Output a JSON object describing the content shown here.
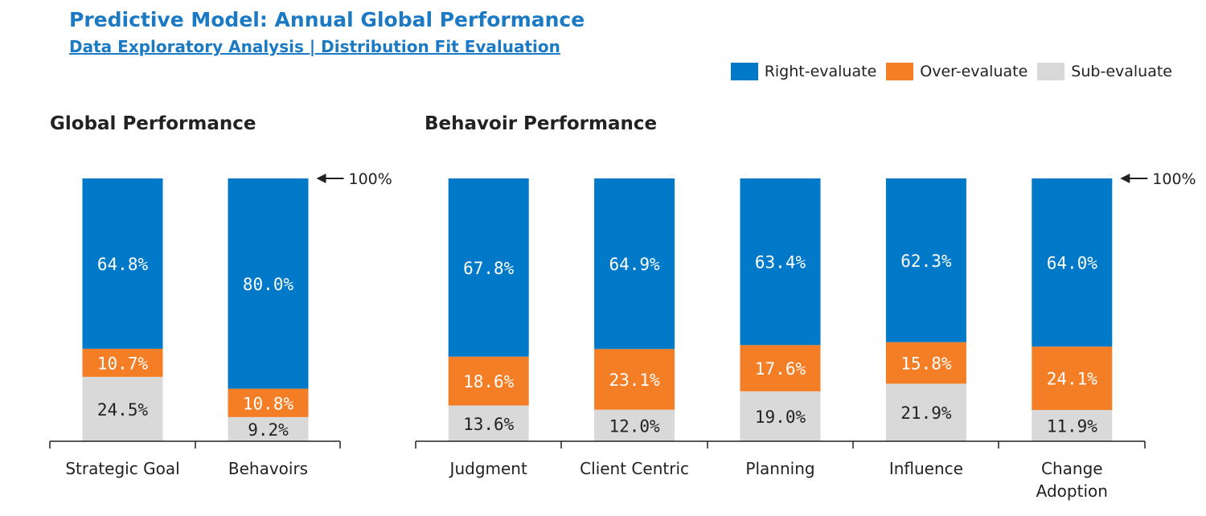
{
  "header": {
    "title": "Predictive Model: Annual Global Performance",
    "subtitle": "Data Exploratory Analysis | Distribution Fit Evaluation"
  },
  "legend": [
    {
      "name": "Right-evaluate",
      "color": "#0079c8"
    },
    {
      "name": "Over-evaluate",
      "color": "#f37e26"
    },
    {
      "name": "Sub-evaluate",
      "color": "#d9d9d9"
    }
  ],
  "chart_data": [
    {
      "type": "bar",
      "stacked": true,
      "title": "Global Performance",
      "categories": [
        "Strategic Goal",
        "Behavoirs"
      ],
      "series": [
        {
          "name": "Sub-evaluate",
          "values": [
            24.5,
            9.2
          ],
          "labels": [
            "24.5%",
            "9.2%"
          ]
        },
        {
          "name": "Over-evaluate",
          "values": [
            10.7,
            10.8
          ],
          "labels": [
            "10.7%",
            "10.8%"
          ]
        },
        {
          "name": "Right-evaluate",
          "values": [
            64.8,
            80.0
          ],
          "labels": [
            "64.8%",
            "80.0%"
          ]
        }
      ],
      "ylim": [
        0,
        100
      ],
      "annotation": "100%",
      "grid": false
    },
    {
      "type": "bar",
      "stacked": true,
      "title": "Behavoir Performance",
      "categories": [
        "Judgment",
        "Client Centric",
        "Planning",
        "Influence",
        "Change Adoption"
      ],
      "series": [
        {
          "name": "Sub-evaluate",
          "values": [
            13.6,
            12.0,
            19.0,
            21.9,
            11.9
          ],
          "labels": [
            "13.6%",
            "12.0%",
            "19.0%",
            "21.9%",
            "11.9%"
          ]
        },
        {
          "name": "Over-evaluate",
          "values": [
            18.6,
            23.1,
            17.6,
            15.8,
            24.1
          ],
          "labels": [
            "18.6%",
            "23.1%",
            "17.6%",
            "15.8%",
            "24.1%"
          ]
        },
        {
          "name": "Right-evaluate",
          "values": [
            67.8,
            64.9,
            63.4,
            62.3,
            64.0
          ],
          "labels": [
            "67.8%",
            "64.9%",
            "63.4%",
            "62.3%",
            "64.0%"
          ]
        }
      ],
      "ylim": [
        0,
        100
      ],
      "annotation": "100%",
      "grid": false
    }
  ]
}
